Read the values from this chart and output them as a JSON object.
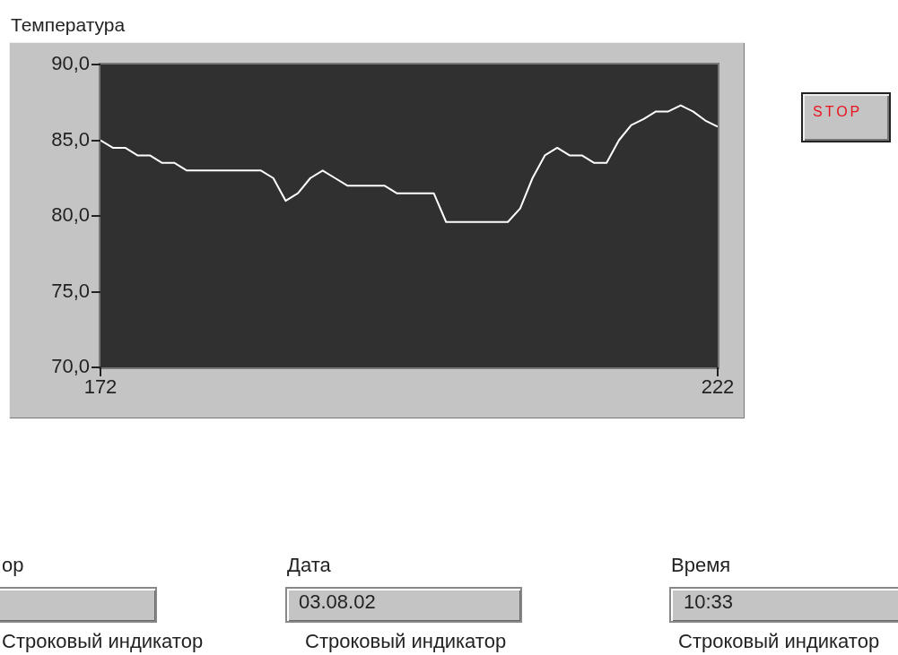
{
  "chart_data": {
    "type": "line",
    "title": "Температура",
    "x": [
      172,
      173,
      174,
      175,
      176,
      177,
      178,
      179,
      180,
      181,
      182,
      183,
      184,
      185,
      186,
      187,
      188,
      189,
      190,
      191,
      192,
      193,
      194,
      195,
      196,
      197,
      198,
      199,
      200,
      201,
      202,
      203,
      204,
      205,
      206,
      207,
      208,
      209,
      210,
      211,
      212,
      213,
      214,
      215,
      216,
      217,
      218,
      219,
      220,
      221,
      222
    ],
    "series": [
      {
        "color": "#ffffff",
        "values": [
          85.0,
          84.5,
          84.5,
          84.0,
          84.0,
          83.5,
          83.5,
          83.0,
          83.0,
          83.0,
          83.0,
          83.0,
          83.0,
          83.0,
          82.5,
          81.0,
          81.5,
          82.5,
          83.0,
          82.5,
          82.0,
          82.0,
          82.0,
          82.0,
          81.5,
          81.5,
          81.5,
          81.5,
          79.6,
          79.6,
          79.6,
          79.6,
          79.6,
          79.6,
          80.5,
          82.5,
          84.0,
          84.5,
          84.0,
          84.0,
          83.5,
          83.5,
          85.0,
          86.0,
          86.4,
          86.9,
          86.9,
          87.3,
          86.9,
          86.3,
          85.9
        ]
      }
    ],
    "xlim": [
      172,
      222
    ],
    "xticks": [
      172,
      222
    ],
    "ylim": [
      70,
      90
    ],
    "yticks": [
      {
        "value": 70,
        "label": "70,0"
      },
      {
        "value": 75,
        "label": "75,0"
      },
      {
        "value": 80,
        "label": "80,0"
      },
      {
        "value": 85,
        "label": "85,0"
      },
      {
        "value": 90,
        "label": "90,0"
      }
    ],
    "grid": false,
    "legend": false,
    "marker": "none",
    "line_style": "solid",
    "annotations": [
      "STOP",
      "ор",
      "Строковый индикатор",
      "Дата",
      "03.08.02",
      "Строковый индикатор",
      "Время",
      "10:33",
      "Строковый индикатор"
    ]
  }
}
